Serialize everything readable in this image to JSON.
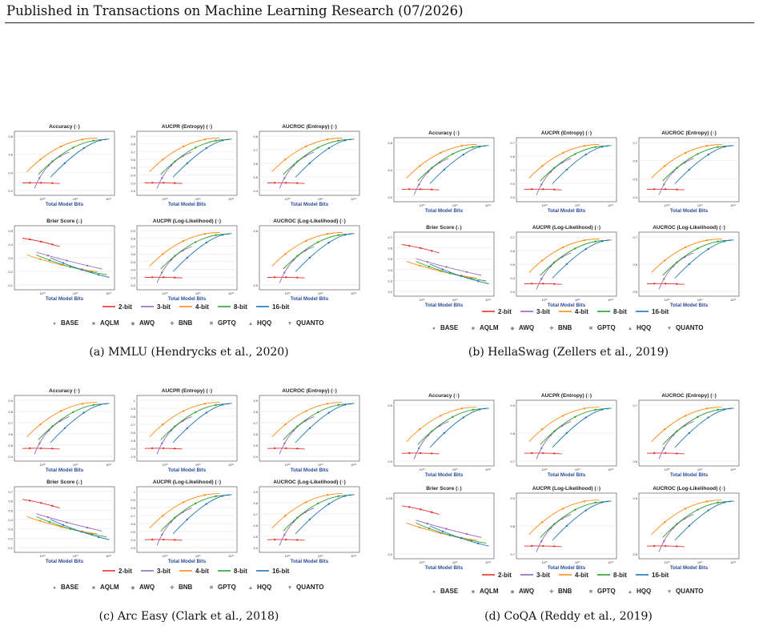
{
  "header": {
    "text": "Published in Transactions on Machine Learning Research (07/2026)"
  },
  "colors": {
    "2-bit": "#e0332f",
    "3-bit": "#9467bd",
    "4-bit": "#ff8c1a",
    "8-bit": "#2ca02c",
    "16-bit": "#1f77b4"
  },
  "legend": {
    "bits": [
      "2-bit",
      "3-bit",
      "4-bit",
      "8-bit",
      "16-bit"
    ],
    "methods": [
      {
        "label": "BASE",
        "glyph": "●"
      },
      {
        "label": "AQLM",
        "glyph": "■"
      },
      {
        "label": "AWQ",
        "glyph": "◆"
      },
      {
        "label": "BNB",
        "glyph": "✚"
      },
      {
        "label": "GPTQ",
        "glyph": "✖"
      },
      {
        "label": "HQQ",
        "glyph": "▲"
      },
      {
        "label": "QUANTO",
        "glyph": "▼"
      }
    ]
  },
  "axis_label": "Total Model Bits",
  "figures": [
    {
      "caption": "(a) MMLU (Hendrycks et al., 2020)",
      "titles": [
        "Accuracy (↑)",
        "AUCPR (Entropy) (↑)",
        "AUCROC (Entropy) (↑)",
        "Brier Score (↓)",
        "AUCPR (Log-Likelihood) (↑)",
        "AUCROC (Log-Likelihood) (↑)"
      ],
      "yticks": [
        [
          "0.8",
          "0.6",
          "0.4",
          "0.2"
        ],
        [
          "0.9",
          "0.8",
          "0.7",
          "0.6",
          "0.5",
          "0.4",
          "0.3",
          "0.2"
        ],
        [
          "0.8",
          "0.7",
          "0.6",
          "0.5",
          "0.4"
        ],
        [
          "0.5",
          "0.4",
          "0.3",
          "0.2",
          "0.1"
        ],
        [
          "0.9",
          "0.8",
          "0.7",
          "0.6",
          "0.5",
          "0.4",
          "0.3",
          "0.2"
        ],
        [
          "0.6",
          "0.5"
        ]
      ],
      "xticks": [
        "10¹⁰",
        "10¹¹",
        "10¹²"
      ]
    },
    {
      "caption": "(b) HellaSwag (Zellers et al., 2019)",
      "titles": [
        "Accuracy (↑)",
        "AUCPR (Entropy) (↑)",
        "AUCROC (Entropy) (↑)",
        "Brier Score (↓)",
        "AUCPR (Log-Likelihood) (↑)",
        "AUCROC (Log-Likelihood) (↑)"
      ],
      "yticks": [
        [
          "0.6",
          "0.4",
          "0.2"
        ],
        [
          "0.7",
          "0.6",
          "0.5",
          "0.4",
          "0.3"
        ],
        [
          "0.7",
          "0.6",
          "0.5",
          "0.4"
        ],
        [
          "0.7",
          "0.6",
          "0.5",
          "0.4",
          "0.3",
          "0.2"
        ],
        [
          "0.7",
          "0.6",
          "0.5",
          "0.4",
          "0.3"
        ],
        [
          "0.7",
          "0.6",
          "0.5"
        ]
      ],
      "xticks": [
        "10¹⁰",
        "10¹¹",
        "10¹²"
      ]
    },
    {
      "caption": "(c) Arc Easy (Clark et al., 2018)",
      "titles": [
        "Accuracy (↑)",
        "AUCPR (Entropy) (↑)",
        "AUCROC (Entropy) (↑)",
        "Brier Score (↓)",
        "AUCPR (Log-Likelihood) (↑)",
        "AUCROC (Log-Likelihood) (↑)"
      ],
      "yticks": [
        [
          "0.9",
          "0.8",
          "0.7",
          "0.6",
          "0.5",
          "0.4"
        ],
        [
          "1",
          "0.9",
          "0.8",
          "0.7",
          "0.6",
          "0.5",
          "0.4",
          "0.3"
        ],
        [
          "0.9",
          "0.8",
          "0.7",
          "0.6",
          "0.5",
          "0.4"
        ],
        [
          "0.7",
          "0.6",
          "0.5",
          "0.4",
          "0.3",
          "0.2",
          "0.1"
        ],
        [
          "1",
          "0.9",
          "0.8",
          "0.7",
          "0.6",
          "0.5",
          "0.4",
          "0.3"
        ],
        [
          "0.9",
          "0.8",
          "0.7",
          "0.6",
          "0.5",
          "0.4"
        ]
      ],
      "xticks": [
        "10¹⁰",
        "10¹¹",
        "10¹²"
      ]
    },
    {
      "caption": "(d) CoQA (Reddy et al., 2019)",
      "titles": [
        "Accuracy (↑)",
        "AUCPR (Entropy) (↑)",
        "AUCROC (Entropy) (↑)",
        "Brier Score (↓)",
        "AUCPR (Log-Likelihood) (↑)",
        "AUCROC (Log-Likelihood) (↑)"
      ],
      "yticks": [
        [
          "0.5",
          "0.0"
        ],
        [
          "0.9",
          "0.8",
          "0.7"
        ],
        [
          "0.7",
          "0.6"
        ],
        [
          "0.25",
          "0.2"
        ],
        [
          "0.9",
          "0.8",
          "0.7"
        ],
        [
          "0.6",
          "0.5"
        ]
      ],
      "xticks": [
        "10¹⁰",
        "10¹¹",
        "10¹²"
      ]
    }
  ]
}
